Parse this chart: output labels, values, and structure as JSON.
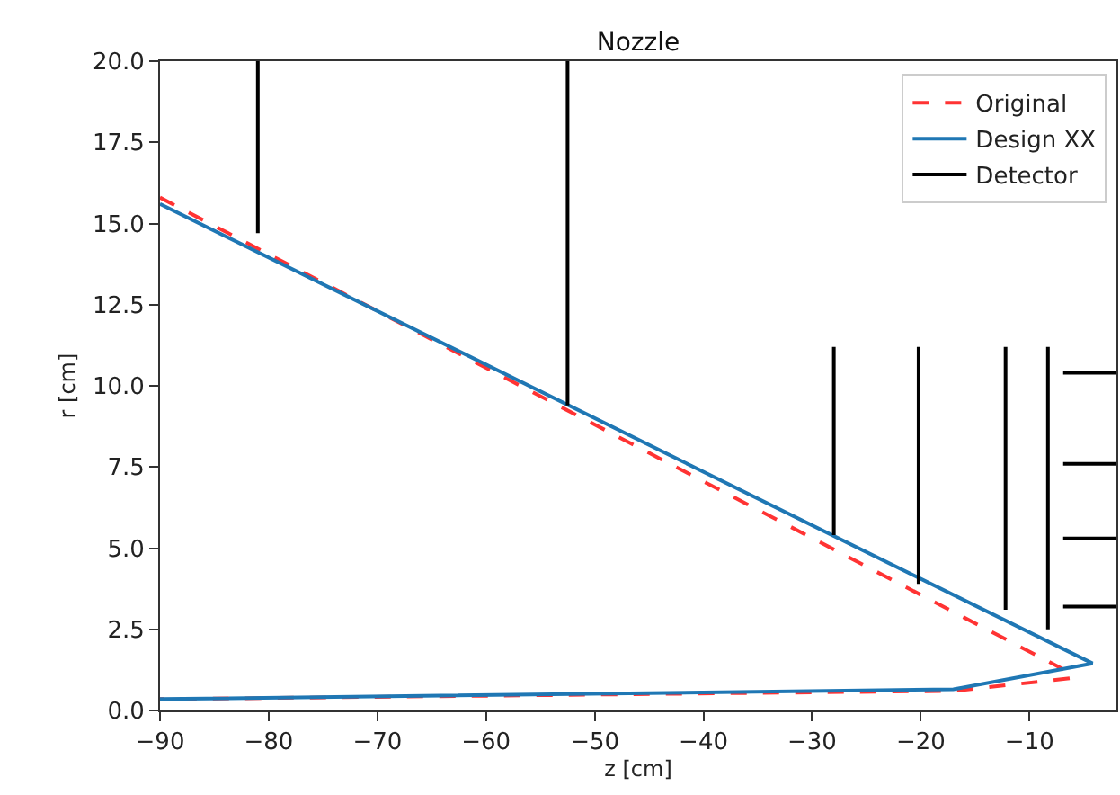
{
  "chart_data": {
    "type": "line",
    "title": "Nozzle",
    "xlabel": "z [cm]",
    "ylabel": "r [cm]",
    "xlim": [
      -90,
      -2
    ],
    "ylim": [
      0,
      20
    ],
    "xticks": [
      {
        "value": -90,
        "label": "−90"
      },
      {
        "value": -80,
        "label": "−80"
      },
      {
        "value": -70,
        "label": "−70"
      },
      {
        "value": -60,
        "label": "−60"
      },
      {
        "value": -50,
        "label": "−50"
      },
      {
        "value": -40,
        "label": "−40"
      },
      {
        "value": -30,
        "label": "−30"
      },
      {
        "value": -20,
        "label": "−20"
      },
      {
        "value": -10,
        "label": "−10"
      }
    ],
    "yticks": [
      {
        "value": 0,
        "label": "0.0"
      },
      {
        "value": 2.5,
        "label": "2.5"
      },
      {
        "value": 5,
        "label": "5.0"
      },
      {
        "value": 7.5,
        "label": "7.5"
      },
      {
        "value": 10,
        "label": "10.0"
      },
      {
        "value": 12.5,
        "label": "12.5"
      },
      {
        "value": 15,
        "label": "15.0"
      },
      {
        "value": 17.5,
        "label": "17.5"
      },
      {
        "value": 20,
        "label": "20.0"
      }
    ],
    "legend": "top right",
    "series": [
      {
        "name": "Original",
        "color": "#ff3333",
        "line_style": "dashed",
        "x": [
          -90,
          -6.5,
          -6,
          -17,
          -90
        ],
        "values": [
          15.8,
          1.2,
          1.0,
          0.6,
          0.35
        ]
      },
      {
        "name": "Design XX",
        "color": "#1f77b4",
        "line_style": "solid",
        "x": [
          -90,
          -4.2,
          -17,
          -90
        ],
        "values": [
          15.6,
          1.45,
          0.65,
          0.35
        ]
      },
      {
        "name": "Detector",
        "color": "#000000",
        "line_style": "solid",
        "x": [
          -81,
          -81
        ],
        "values": [
          20,
          14.7
        ]
      },
      {
        "color": "#000000",
        "line_style": "solid",
        "x": [
          -52.5,
          -52.5
        ],
        "values": [
          20,
          9.4
        ]
      },
      {
        "color": "#000000",
        "line_style": "solid",
        "x": [
          -28,
          -28
        ],
        "values": [
          11.2,
          5.4
        ]
      },
      {
        "color": "#000000",
        "line_style": "solid",
        "x": [
          -20.2,
          -20.2
        ],
        "values": [
          11.2,
          3.9
        ]
      },
      {
        "color": "#000000",
        "line_style": "solid",
        "x": [
          -12.2,
          -12.2
        ],
        "values": [
          11.2,
          3.1
        ]
      },
      {
        "color": "#000000",
        "line_style": "solid",
        "x": [
          -8.3,
          -8.3
        ],
        "values": [
          11.2,
          2.5
        ]
      },
      {
        "color": "#000000",
        "line_style": "solid",
        "x": [
          -6.9,
          -2
        ],
        "values": [
          10.4,
          10.4
        ]
      },
      {
        "color": "#000000",
        "line_style": "solid",
        "x": [
          -6.9,
          -2
        ],
        "values": [
          7.6,
          7.6
        ]
      },
      {
        "color": "#000000",
        "line_style": "solid",
        "x": [
          -6.9,
          -2
        ],
        "values": [
          5.3,
          5.3
        ]
      },
      {
        "color": "#000000",
        "line_style": "solid",
        "x": [
          -6.9,
          -2
        ],
        "values": [
          3.2,
          3.2
        ]
      }
    ]
  }
}
